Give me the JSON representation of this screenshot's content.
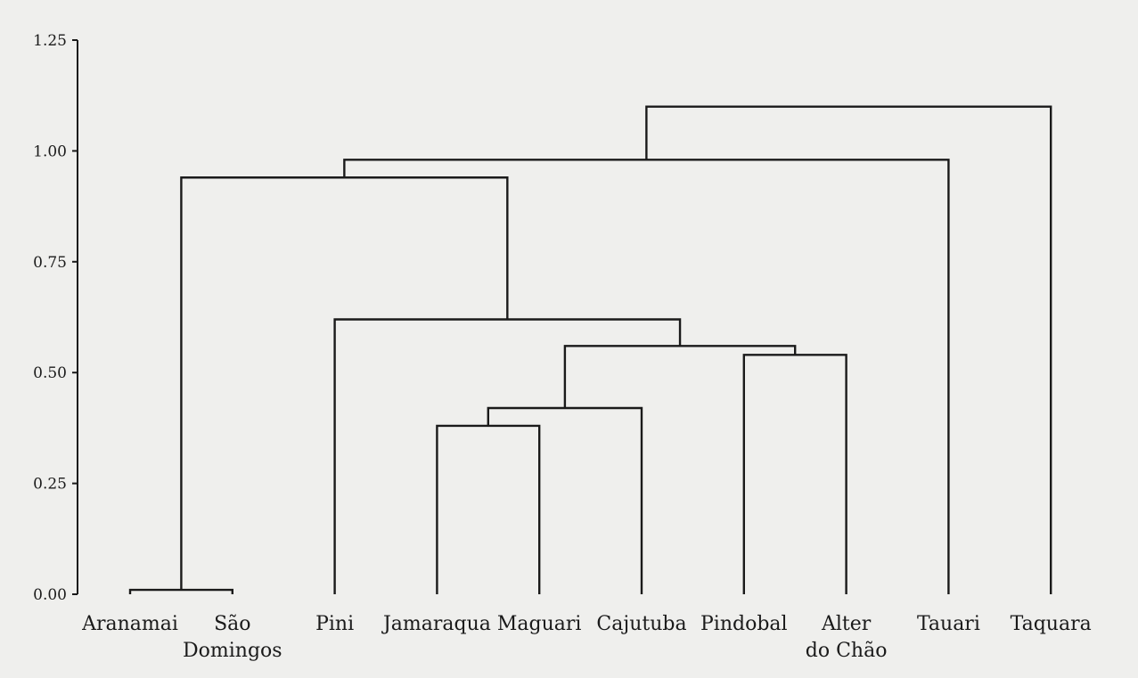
{
  "chart_data": {
    "type": "dendrogram",
    "title": "",
    "xlabel": "",
    "ylabel": "",
    "ylim": [
      0,
      1.25
    ],
    "yticks": [
      "0.00",
      "0.25",
      "0.50",
      "0.75",
      "1.00",
      "1.25"
    ],
    "grid": false,
    "leaves": [
      {
        "id": "aranamai",
        "lines": [
          "Aranamai"
        ]
      },
      {
        "id": "sao-domingos",
        "lines": [
          "São",
          "Domingos"
        ]
      },
      {
        "id": "pini",
        "lines": [
          "Pini"
        ]
      },
      {
        "id": "jamaraqua",
        "lines": [
          "Jamaraqua"
        ]
      },
      {
        "id": "maguari",
        "lines": [
          "Maguari"
        ]
      },
      {
        "id": "cajutuba",
        "lines": [
          "Cajutuba"
        ]
      },
      {
        "id": "pindobal",
        "lines": [
          "Pindobal"
        ]
      },
      {
        "id": "alter-do-chao",
        "lines": [
          "Alter",
          "do Chão"
        ]
      },
      {
        "id": "tauari",
        "lines": [
          "Tauari"
        ]
      },
      {
        "id": "taquara",
        "lines": [
          "Taquara"
        ]
      }
    ],
    "merges": [
      {
        "a": "aranamai",
        "b": "sao-domingos",
        "height": 0.01
      },
      {
        "a": "jamaraqua",
        "b": "maguari",
        "height": 0.38
      },
      {
        "a": "m2",
        "b": "cajutuba",
        "height": 0.42
      },
      {
        "a": "pindobal",
        "b": "alter-do-chao",
        "height": 0.54
      },
      {
        "a": "m3",
        "b": "m4",
        "height": 0.56
      },
      {
        "a": "pini",
        "b": "m5",
        "height": 0.62
      },
      {
        "a": "m1",
        "b": "m6",
        "height": 0.94
      },
      {
        "a": "m7",
        "b": "tauari",
        "height": 0.98
      },
      {
        "a": "m8",
        "b": "taquara",
        "height": 1.1
      }
    ]
  }
}
